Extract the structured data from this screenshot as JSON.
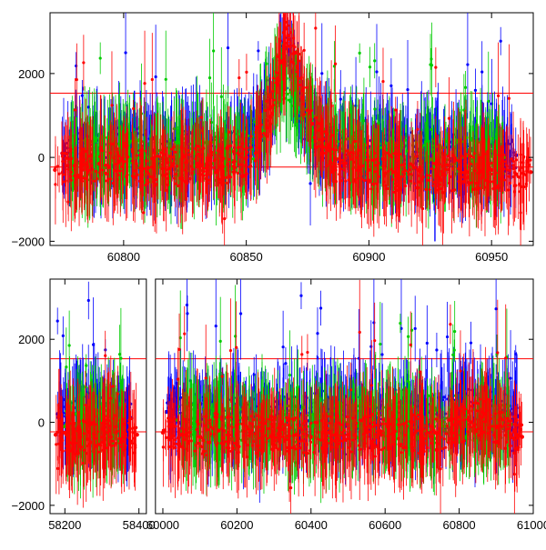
{
  "chart_data": [
    {
      "type": "scatter",
      "panel": "top",
      "title": "",
      "xlabel": "",
      "ylabel": "",
      "xlim": [
        60770,
        60967
      ],
      "ylim": [
        -2100,
        3450
      ],
      "xticks": [
        60800,
        60850,
        60900,
        60950
      ],
      "xtick_labels": [
        "60800",
        "60850",
        "60900",
        "60950"
      ],
      "yticks": [
        -2000,
        0,
        2000
      ],
      "ytick_labels": [
        "−2000",
        "0",
        "2000"
      ],
      "grid": false,
      "legend": "none",
      "error_bars": true,
      "reference_lines": [
        {
          "y": 1530,
          "color": "#ff0000"
        },
        {
          "y": -230,
          "color": "#ff0000"
        }
      ],
      "series": [
        {
          "color": "#0000ff",
          "x": [
            60775,
            60780,
            60790,
            60800,
            60810,
            60820,
            60830,
            60840,
            60850,
            60858,
            60862,
            60866,
            60869,
            60872,
            60876,
            60882,
            60890,
            60900,
            60910,
            60920,
            60930,
            60940,
            60950,
            60960
          ],
          "y": [
            100,
            200,
            150,
            300,
            200,
            100,
            250,
            150,
            300,
            900,
            1700,
            2600,
            2000,
            1100,
            600,
            400,
            300,
            250,
            200,
            150,
            100,
            150,
            100,
            50
          ]
        },
        {
          "color": "#00cc00",
          "x": [
            60778,
            60788,
            60798,
            60812,
            60825,
            60838,
            60852,
            60864,
            60870,
            60880,
            60895,
            60910,
            60925,
            60940,
            60955
          ],
          "y": [
            -100,
            50,
            100,
            -50,
            0,
            100,
            200,
            1800,
            1500,
            500,
            100,
            0,
            -50,
            50,
            0
          ]
        },
        {
          "color": "#ff0000",
          "x": [
            60772,
            60780,
            60790,
            60800,
            60810,
            60820,
            60830,
            60840,
            60850,
            60856,
            60860,
            60864,
            60867,
            60870,
            60873,
            60877,
            60883,
            60890,
            60900,
            60910,
            60920,
            60930,
            60940,
            60950,
            60960,
            60966
          ],
          "y": [
            -300,
            -200,
            -150,
            -100,
            -250,
            -200,
            -150,
            -200,
            0,
            500,
            1200,
            2300,
            2900,
            2500,
            1600,
            800,
            200,
            -200,
            -300,
            -350,
            -300,
            -400,
            -350,
            -300,
            -400,
            -350
          ]
        }
      ]
    },
    {
      "type": "scatter",
      "panel": "bottom",
      "title": "",
      "xlabel": "",
      "ylabel": "",
      "broken_axis": true,
      "segments": [
        {
          "xlim": [
            58160,
            58420
          ],
          "xticks": [
            58200,
            58400
          ],
          "xtick_labels": [
            "58200",
            "58400"
          ]
        },
        {
          "xlim": [
            59980,
            61000
          ],
          "xticks": [
            60000,
            60200,
            60400,
            60600,
            60800,
            61000
          ],
          "xtick_labels": [
            "60000",
            "60200",
            "60400",
            "60600",
            "60800",
            "61000"
          ]
        }
      ],
      "ylim": [
        -2200,
        3450
      ],
      "yticks": [
        -2000,
        0,
        2000
      ],
      "ytick_labels": [
        "−2000",
        "0",
        "2000"
      ],
      "grid": false,
      "legend": "none",
      "error_bars": true,
      "reference_lines": [
        {
          "y": 1530,
          "color": "#ff0000"
        },
        {
          "y": -230,
          "color": "#ff0000"
        }
      ],
      "series": [
        {
          "color": "#0000ff",
          "x": [
            58180,
            58220,
            58260,
            58300,
            58340,
            58380,
            60010,
            60060,
            60120,
            60180,
            60230,
            60370,
            60420,
            60470,
            60520,
            60580,
            60740,
            60790,
            60840,
            60880,
            60930,
            60960
          ],
          "y": [
            200,
            100,
            300,
            150,
            200,
            100,
            250,
            300,
            150,
            200,
            100,
            200,
            300,
            150,
            250,
            100,
            200,
            300,
            400,
            350,
            250,
            150
          ]
        },
        {
          "color": "#00cc00",
          "x": [
            58200,
            58280,
            58360,
            60040,
            60150,
            60220,
            60400,
            60500,
            60560,
            60760,
            60860,
            60940
          ],
          "y": [
            -100,
            0,
            -50,
            50,
            -100,
            0,
            -50,
            0,
            50,
            -100,
            0,
            -50
          ]
        },
        {
          "color": "#ff0000",
          "x": [
            58175,
            58200,
            58240,
            58280,
            58320,
            58360,
            58395,
            60000,
            60050,
            60100,
            60150,
            60200,
            60235,
            60360,
            60400,
            60450,
            60500,
            60550,
            60590,
            60735,
            60780,
            60830,
            60870,
            60900,
            60940,
            60970
          ],
          "y": [
            -300,
            -250,
            -350,
            -300,
            -200,
            -350,
            -300,
            -250,
            -300,
            -350,
            -200,
            -300,
            -250,
            -300,
            -350,
            -250,
            -300,
            -200,
            -300,
            -250,
            -150,
            0,
            200,
            -100,
            -300,
            -350
          ]
        }
      ]
    }
  ]
}
